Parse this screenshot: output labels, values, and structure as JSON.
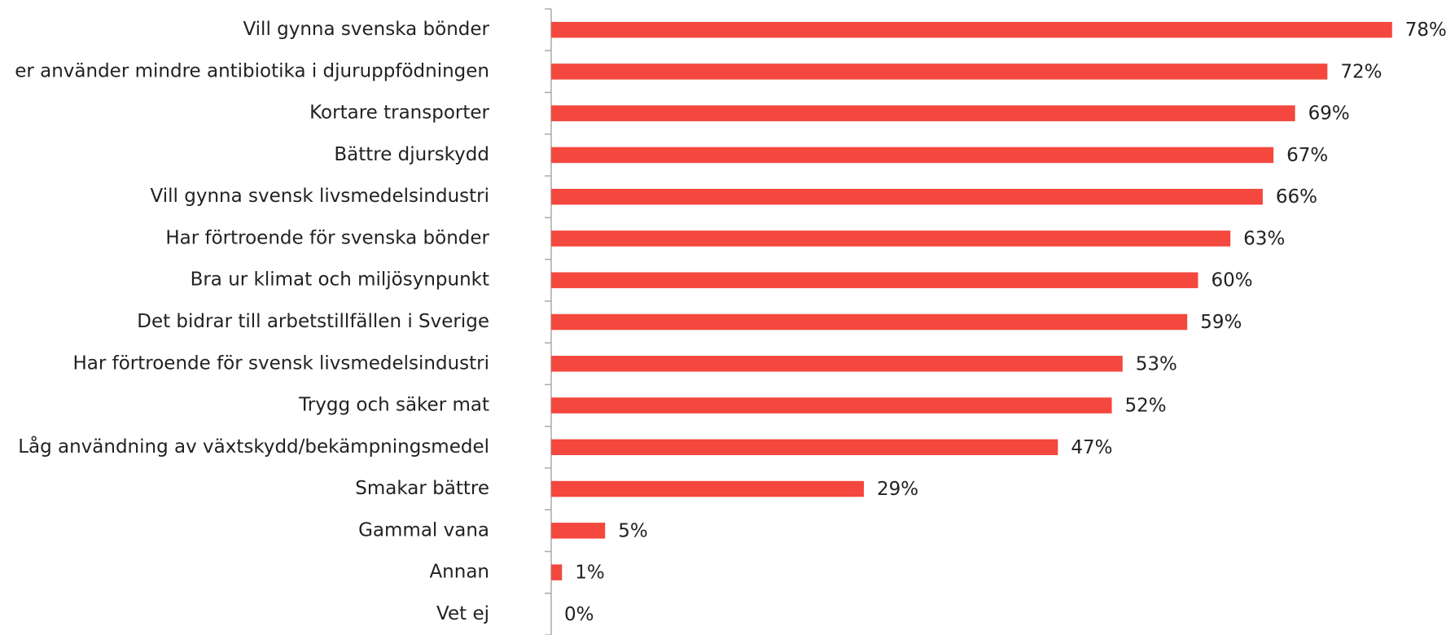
{
  "chart_data": {
    "type": "barh",
    "categories": [
      "Vill gynna svenska bönder",
      "er använder mindre antibiotika i djuruppfödningen",
      "Kortare transporter",
      "Bättre djurskydd",
      "Vill gynna svensk livsmedelsindustri",
      "Har förtroende för svenska bönder",
      "Bra ur klimat och miljösynpunkt",
      "Det bidrar till arbetstillfällen i Sverige",
      "Har förtroende för svensk livsmedelsindustri",
      "Trygg och säker mat",
      "Låg användning av växtskydd/bekämpningsmedel",
      "Smakar bättre",
      "Gammal vana",
      "Annan",
      "Vet ej"
    ],
    "values": [
      78,
      72,
      69,
      67,
      66,
      63,
      60,
      59,
      53,
      52,
      47,
      29,
      5,
      1,
      0
    ],
    "value_labels": [
      "78%",
      "72%",
      "69%",
      "67%",
      "66%",
      "63%",
      "60%",
      "59%",
      "53%",
      "52%",
      "47%",
      "29%",
      "5%",
      "1%",
      "0%"
    ],
    "color": "#f4473e",
    "xlim": [
      0,
      83
    ]
  }
}
